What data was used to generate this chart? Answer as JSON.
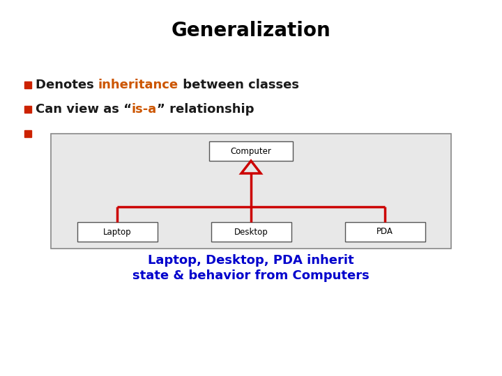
{
  "title": "Generalization",
  "title_fontsize": 20,
  "title_fontweight": "bold",
  "title_color": "#000000",
  "bullet_color": "#cc2200",
  "bullet1_parts": [
    {
      "text": "Denotes ",
      "color": "#1a1a1a",
      "bold": true
    },
    {
      "text": "inheritance",
      "color": "#cc5500",
      "bold": true
    },
    {
      "text": " between classes",
      "color": "#1a1a1a",
      "bold": true
    }
  ],
  "bullet2_parts": [
    {
      "text": "Can view as “",
      "color": "#1a1a1a",
      "bold": true
    },
    {
      "text": "is-a",
      "color": "#cc5500",
      "bold": true
    },
    {
      "text": "” relationship",
      "color": "#1a1a1a",
      "bold": true
    }
  ],
  "diagram_bg": "#e8e8e8",
  "diagram_border": "#888888",
  "box_color": "#ffffff",
  "box_border": "#555555",
  "line_color": "#cc0000",
  "arrow_color": "#cc0000",
  "computer_label": "Computer",
  "child_labels": [
    "Laptop",
    "Desktop",
    "PDA"
  ],
  "caption_color": "#0000cc",
  "caption_line1": "Laptop, Desktop, PDA inherit",
  "caption_line2": "state & behavior from Computers",
  "caption_fontsize": 13,
  "background_color": "#ffffff"
}
